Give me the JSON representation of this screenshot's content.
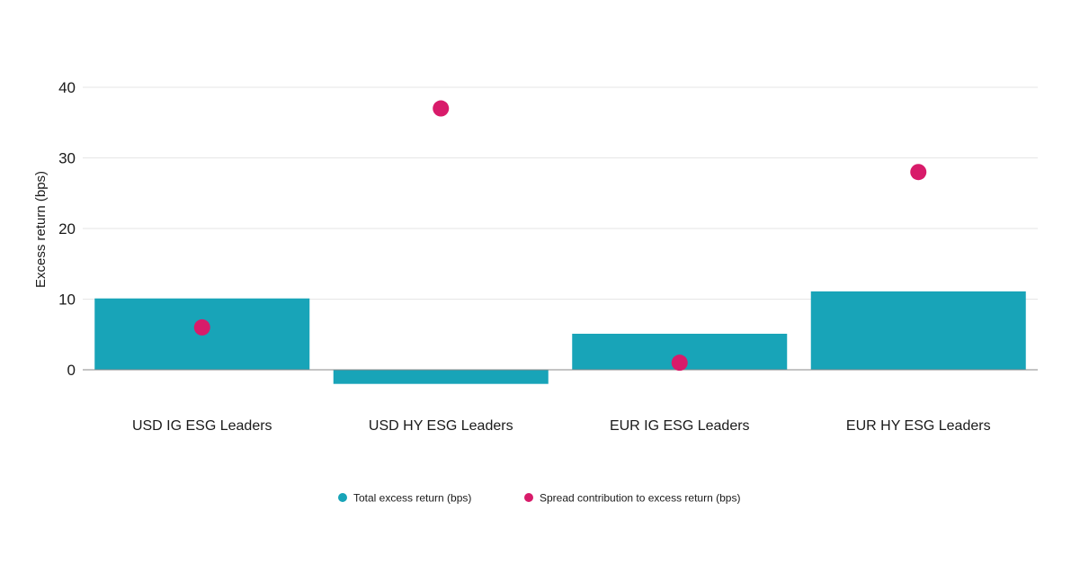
{
  "chart_data": {
    "type": "bar",
    "categories": [
      "USD IG ESG Leaders",
      "USD HY ESG Leaders",
      "EUR IG ESG Leaders",
      "EUR HY ESG Leaders"
    ],
    "series": [
      {
        "name": "Total excess return (bps)",
        "kind": "bar",
        "color": "#18a4b8",
        "values": [
          10.1,
          -2.0,
          5.1,
          11.1
        ]
      },
      {
        "name": "Spread contribution to excess return (bps)",
        "kind": "point",
        "color": "#d81b6a",
        "values": [
          6.0,
          37.0,
          1.0,
          28.0
        ]
      }
    ],
    "ylabel": "Excess return (bps)",
    "ylim": [
      -2.5,
      40
    ],
    "yticks": [
      0,
      10,
      20,
      30,
      40
    ],
    "grid": true,
    "legend": "bottom-center"
  }
}
